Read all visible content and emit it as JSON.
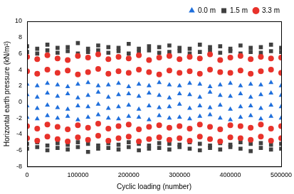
{
  "chart_data": {
    "type": "scatter",
    "x_label": "Cyclic loading (number)",
    "y_label": "Horizontal earth pressure (kN/m²)",
    "xlim": [
      0,
      500000
    ],
    "xticks": [
      0,
      100000,
      200000,
      300000,
      400000,
      500000
    ],
    "ylim": [
      -8,
      10
    ],
    "yticks": [
      -8,
      -6,
      -4,
      -2,
      0,
      2,
      4,
      6,
      8,
      10
    ],
    "grid": false,
    "legend": "upper right",
    "x": [
      0,
      20000,
      40000,
      60000,
      80000,
      100000,
      120000,
      140000,
      160000,
      180000,
      200000,
      220000,
      240000,
      260000,
      280000,
      300000,
      320000,
      340000,
      360000,
      380000,
      400000,
      420000,
      440000,
      460000,
      480000,
      500000,
      0,
      20000,
      40000,
      60000,
      80000,
      100000,
      120000,
      140000,
      160000,
      180000,
      200000,
      220000,
      240000,
      260000,
      280000,
      300000,
      320000,
      340000,
      360000,
      380000,
      400000,
      420000,
      440000,
      460000,
      480000,
      500000,
      0,
      20000,
      40000,
      60000,
      80000,
      100000,
      120000,
      140000,
      160000,
      180000,
      200000,
      220000,
      240000,
      260000,
      280000,
      300000,
      320000,
      340000,
      360000,
      380000,
      400000,
      420000,
      440000,
      460000,
      480000,
      500000,
      0,
      20000,
      40000,
      60000,
      80000,
      100000,
      120000,
      140000,
      160000,
      180000,
      200000,
      220000,
      240000,
      260000,
      280000,
      300000,
      320000,
      340000,
      360000,
      380000,
      400000,
      420000,
      440000,
      460000,
      480000,
      500000
    ],
    "series": [
      {
        "name": "0.0 m",
        "color": "#1f6fdc",
        "marker": "triangle",
        "values": [
          2.2,
          2.0,
          2.3,
          2.1,
          1.9,
          2.2,
          2.4,
          2.0,
          2.1,
          2.3,
          1.9,
          2.2,
          2.0,
          2.4,
          2.1,
          2.0,
          2.3,
          2.2,
          1.9,
          2.1,
          2.3,
          2.0,
          2.2,
          2.1,
          2.4,
          2.0,
          0.9,
          0.6,
          1.1,
          0.7,
          1.0,
          0.5,
          0.8,
          1.2,
          0.6,
          0.9,
          1.0,
          0.7,
          1.1,
          0.8,
          0.5,
          1.0,
          0.9,
          0.6,
          1.2,
          0.8,
          0.7,
          1.0,
          0.6,
          0.9,
          1.1,
          0.8,
          -0.5,
          -0.8,
          -0.4,
          -0.7,
          -0.9,
          -0.5,
          -0.6,
          -0.3,
          -0.8,
          -0.6,
          -0.4,
          -0.9,
          -0.5,
          -0.7,
          -0.6,
          -0.3,
          -0.8,
          -0.5,
          -0.7,
          -0.4,
          -0.9,
          -0.6,
          -0.5,
          -0.8,
          -0.4,
          -0.6,
          -1.9,
          -2.1,
          -1.7,
          -2.0,
          -1.8,
          -2.2,
          -1.9,
          -1.6,
          -2.0,
          -2.1,
          -1.8,
          -1.9,
          -2.2,
          -1.7,
          -2.0,
          -1.9,
          -2.1,
          -1.8,
          -1.6,
          -2.0,
          -2.2,
          -1.9,
          -1.7,
          -2.1,
          -1.8,
          -2.0
        ]
      },
      {
        "name": "1.5 m",
        "color": "#404040",
        "marker": "square",
        "values": [
          6.9,
          6.6,
          7.1,
          6.7,
          6.8,
          7.3,
          6.6,
          7.0,
          6.8,
          6.7,
          7.2,
          6.6,
          6.9,
          6.8,
          7.0,
          6.7,
          6.6,
          7.1,
          6.8,
          6.9,
          6.6,
          7.0,
          6.7,
          6.8,
          7.1,
          6.7,
          6.2,
          6.0,
          6.4,
          6.1,
          6.3,
          6.0,
          6.2,
          6.4,
          6.1,
          6.3,
          6.0,
          6.2,
          6.4,
          6.1,
          6.2,
          6.3,
          6.0,
          6.2,
          6.4,
          6.1,
          6.3,
          6.0,
          6.2,
          6.1,
          6.3,
          6.2,
          -5.2,
          -5.0,
          -5.4,
          -5.1,
          -5.3,
          -5.0,
          -5.2,
          -5.4,
          -5.1,
          -5.3,
          -5.0,
          -5.2,
          -5.4,
          -5.1,
          -5.2,
          -5.3,
          -5.0,
          -5.2,
          -5.4,
          -5.1,
          -5.3,
          -5.0,
          -5.2,
          -5.1,
          -5.3,
          -5.2,
          -5.8,
          -5.6,
          -6.0,
          -5.7,
          -5.9,
          -5.6,
          -6.2,
          -5.8,
          -5.7,
          -5.9,
          -5.6,
          -6.0,
          -5.8,
          -5.7,
          -5.9,
          -5.6,
          -5.8,
          -6.0,
          -5.7,
          -5.9,
          -5.6,
          -5.8,
          -6.1,
          -5.7,
          -5.9,
          -5.8
        ]
      },
      {
        "name": "3.3 m",
        "color": "#e8322b",
        "marker": "circle",
        "values": [
          5.6,
          5.3,
          5.8,
          5.4,
          5.2,
          5.7,
          5.5,
          5.9,
          5.3,
          5.6,
          5.4,
          5.8,
          5.2,
          5.5,
          5.7,
          5.3,
          5.6,
          5.4,
          5.9,
          5.2,
          5.5,
          5.7,
          5.3,
          5.6,
          5.4,
          5.5,
          3.8,
          3.5,
          4.0,
          3.6,
          3.9,
          3.4,
          3.7,
          4.1,
          3.5,
          3.8,
          3.6,
          4.0,
          3.7,
          3.4,
          3.9,
          3.6,
          3.8,
          3.5,
          4.0,
          3.7,
          3.6,
          3.9,
          3.5,
          3.8,
          4.0,
          3.6,
          -3.0,
          -3.3,
          -2.8,
          -3.1,
          -3.4,
          -2.9,
          -3.2,
          -2.7,
          -3.3,
          -3.0,
          -2.8,
          -3.4,
          -3.1,
          -2.9,
          -3.2,
          -3.0,
          -3.3,
          -2.8,
          -3.1,
          -3.4,
          -2.9,
          -3.0,
          -3.2,
          -2.8,
          -3.3,
          -3.0,
          -4.5,
          -4.8,
          -4.3,
          -4.6,
          -4.9,
          -4.4,
          -4.7,
          -4.2,
          -4.8,
          -4.5,
          -4.3,
          -4.9,
          -4.6,
          -4.4,
          -4.7,
          -4.5,
          -4.8,
          -4.3,
          -4.6,
          -4.9,
          -4.4,
          -4.5,
          -4.7,
          -4.3,
          -4.8,
          -4.5
        ]
      }
    ]
  }
}
